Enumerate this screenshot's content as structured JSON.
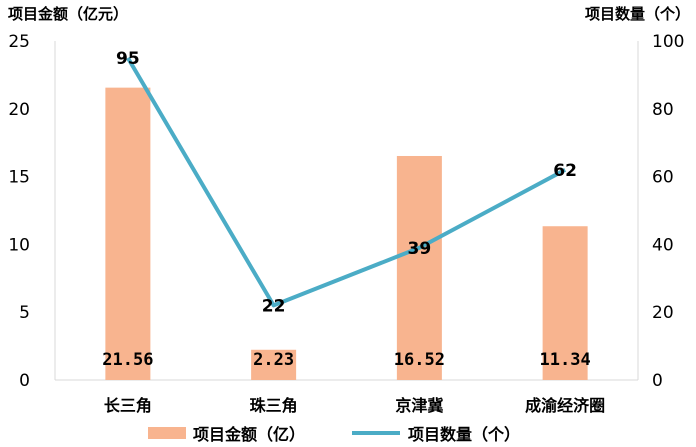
{
  "chart_data": {
    "type": "bar-line-combo",
    "categories": [
      "长三角",
      "珠三角",
      "京津冀",
      "成渝经济圈"
    ],
    "bar_series": {
      "name": "项目金额（亿）",
      "values": [
        21.56,
        2.23,
        16.52,
        11.34
      ],
      "value_labels": [
        "21.56",
        "2.23",
        "16.52",
        "11.34"
      ],
      "color": "#F8B48F"
    },
    "line_series": {
      "name": "项目数量（个）",
      "values": [
        95,
        22,
        39,
        62
      ],
      "value_labels": [
        "95",
        "22",
        "39",
        "62"
      ],
      "color": "#4BACC6"
    },
    "left_axis": {
      "title": "项目金额（亿元）",
      "range": [
        0,
        25
      ],
      "ticks": [
        "0",
        "5",
        "10",
        "15",
        "20",
        "25"
      ]
    },
    "right_axis": {
      "title": "项目数量（个）",
      "range": [
        0,
        100
      ],
      "ticks": [
        "0",
        "20",
        "40",
        "60",
        "80",
        "100"
      ]
    },
    "grid": false,
    "legend": "bottom"
  }
}
